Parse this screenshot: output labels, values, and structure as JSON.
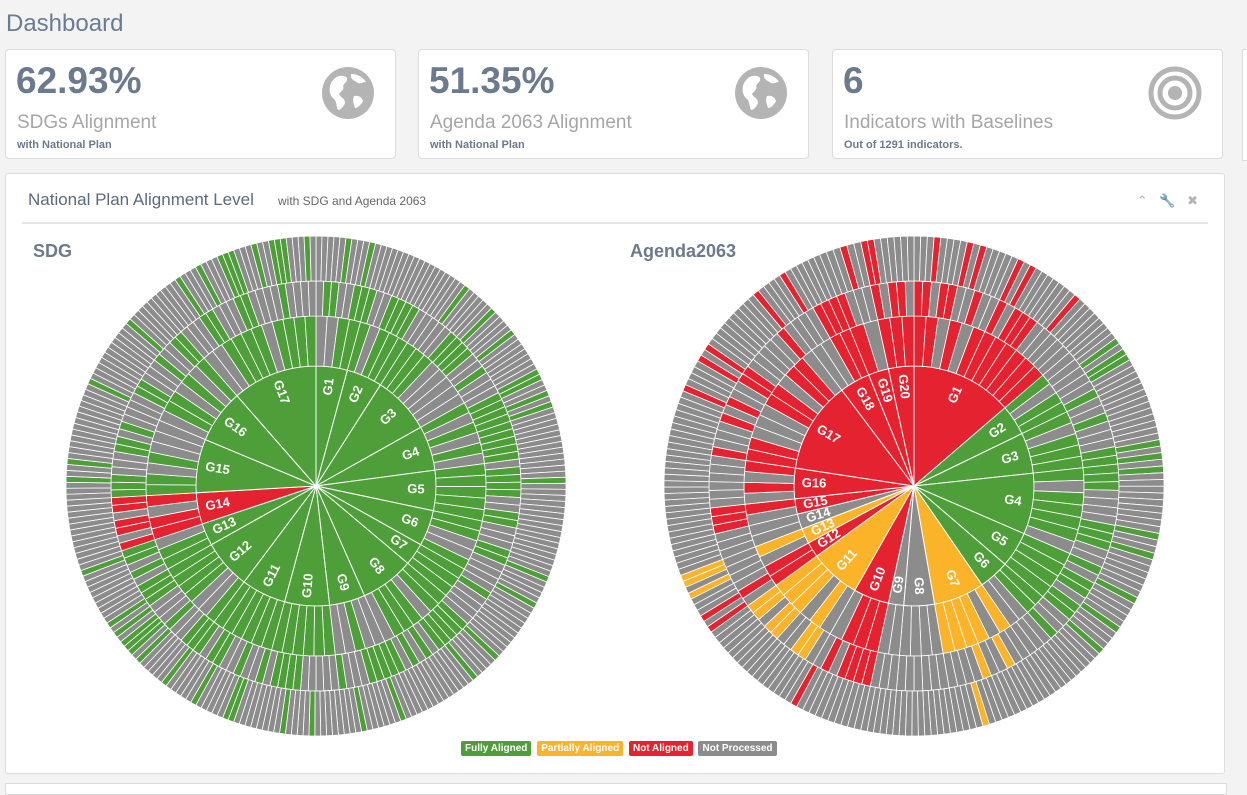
{
  "page": {
    "title": "Dashboard"
  },
  "cards": [
    {
      "value": "62.93%",
      "label": "SDGs Alignment",
      "sub": "with National Plan",
      "icon": "globe-icon"
    },
    {
      "value": "51.35%",
      "label": "Agenda 2063 Alignment",
      "sub": "with National Plan",
      "icon": "globe-icon"
    },
    {
      "value": "6",
      "label": "Indicators with Baselines",
      "sub": "Out of 1291 indicators.",
      "icon": "target-icon"
    }
  ],
  "panel": {
    "title": "National Plan Alignment Level",
    "subtitle": "with SDG and Agenda 2063",
    "tools": [
      "chevron-up-icon",
      "wrench-icon",
      "close-icon"
    ]
  },
  "colors": {
    "fully": "#4e9e39",
    "partially": "#fbb42a",
    "not": "#e52230",
    "none": "#8c8c8c"
  },
  "chart_data": [
    {
      "type": "sunburst",
      "title": "SDG",
      "goals": [
        {
          "label": "G1",
          "weight": 7,
          "status": "fully"
        },
        {
          "label": "G2",
          "weight": 8,
          "status": "fully"
        },
        {
          "label": "G3",
          "weight": 13,
          "status": "fully"
        },
        {
          "label": "G4",
          "weight": 10,
          "status": "fully"
        },
        {
          "label": "G5",
          "weight": 9,
          "status": "fully"
        },
        {
          "label": "G6",
          "weight": 8,
          "status": "fully"
        },
        {
          "label": "G7",
          "weight": 5,
          "status": "fully"
        },
        {
          "label": "G8",
          "weight": 12,
          "status": "fully"
        },
        {
          "label": "G9",
          "weight": 8,
          "status": "fully"
        },
        {
          "label": "G10",
          "weight": 10,
          "status": "fully"
        },
        {
          "label": "G11",
          "weight": 10,
          "status": "fully"
        },
        {
          "label": "G12",
          "weight": 11,
          "status": "fully"
        },
        {
          "label": "G13",
          "weight": 5,
          "status": "fully"
        },
        {
          "label": "G14",
          "weight": 7,
          "status": "not"
        },
        {
          "label": "G15",
          "weight": 12,
          "status": "fully"
        },
        {
          "label": "G16",
          "weight": 12,
          "status": "fully"
        },
        {
          "label": "G17",
          "weight": 19,
          "status": "fully"
        }
      ]
    },
    {
      "type": "sunburst",
      "title": "Agenda2063",
      "goals": [
        {
          "label": "G1",
          "weight": 20,
          "status": "not"
        },
        {
          "label": "G2",
          "weight": 6,
          "status": "fully"
        },
        {
          "label": "G3",
          "weight": 8,
          "status": "fully"
        },
        {
          "label": "G4",
          "weight": 12,
          "status": "fully"
        },
        {
          "label": "G5",
          "weight": 7,
          "status": "fully"
        },
        {
          "label": "G6",
          "weight": 6,
          "status": "fully"
        },
        {
          "label": "G7",
          "weight": 10,
          "status": "partially"
        },
        {
          "label": "G8",
          "weight": 6,
          "status": "none"
        },
        {
          "label": "G9",
          "weight": 3,
          "status": "none"
        },
        {
          "label": "G10",
          "weight": 7,
          "status": "not"
        },
        {
          "label": "G11",
          "weight": 10,
          "status": "partially"
        },
        {
          "label": "G12",
          "weight": 3,
          "status": "not"
        },
        {
          "label": "G13",
          "weight": 3,
          "status": "partially"
        },
        {
          "label": "G14",
          "weight": 3,
          "status": "none"
        },
        {
          "label": "G15",
          "weight": 3,
          "status": "not"
        },
        {
          "label": "G16",
          "weight": 6,
          "status": "not"
        },
        {
          "label": "G17",
          "weight": 18,
          "status": "not"
        },
        {
          "label": "G18",
          "weight": 6,
          "status": "not"
        },
        {
          "label": "G19",
          "weight": 4,
          "status": "not"
        },
        {
          "label": "G20",
          "weight": 5,
          "status": "not"
        }
      ]
    }
  ],
  "legend": [
    {
      "label": "Fully Aligned",
      "status": "fully"
    },
    {
      "label": "Partially Aligned",
      "status": "partially"
    },
    {
      "label": "Not Aligned",
      "status": "not"
    },
    {
      "label": "Not Processed",
      "status": "none"
    }
  ]
}
